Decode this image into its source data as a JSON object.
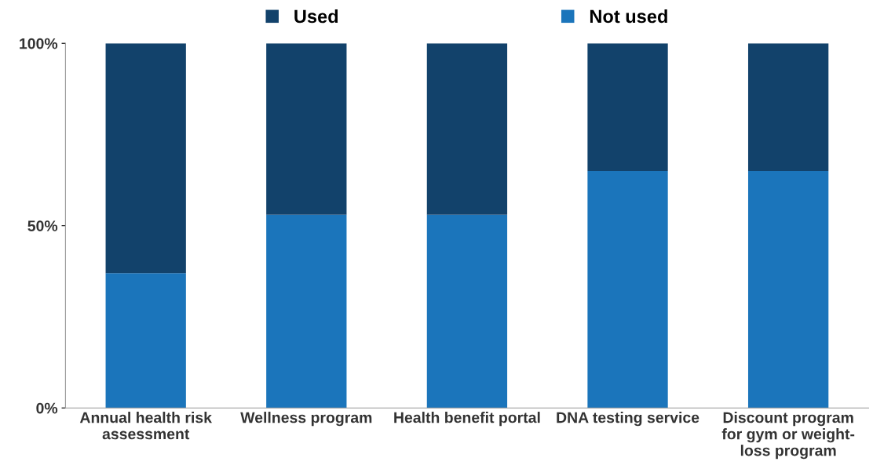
{
  "chart_data": {
    "type": "bar",
    "stacked": true,
    "categories": [
      "Annual health risk\nassessment",
      "Wellness program",
      "Health benefit portal",
      "DNA testing service",
      "Discount program\nfor gym or weight-\nloss program"
    ],
    "series": [
      {
        "name": "Not used",
        "color": "#1b75bb",
        "values": [
          37,
          53,
          53,
          65,
          65
        ]
      },
      {
        "name": "Used",
        "color": "#12426b",
        "values": [
          63,
          47,
          47,
          35,
          35
        ]
      }
    ],
    "ylim": [
      0,
      100
    ],
    "yticks": [
      {
        "value": 0,
        "label": "0%"
      },
      {
        "value": 50,
        "label": "50%"
      },
      {
        "value": 100,
        "label": "100%"
      }
    ],
    "grid": false,
    "legend": "top"
  }
}
